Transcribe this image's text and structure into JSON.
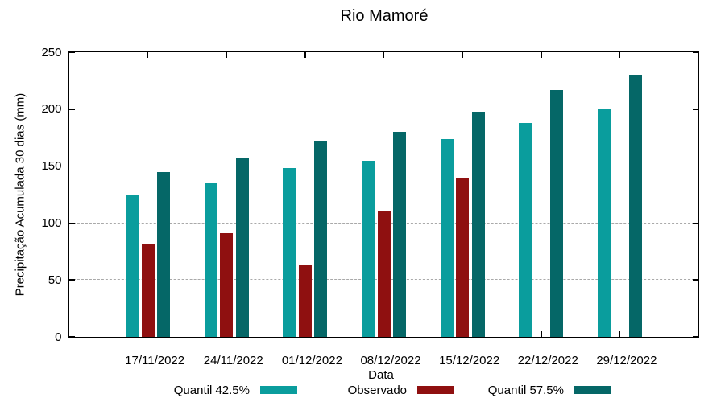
{
  "chart_data": {
    "type": "bar",
    "title": "Rio Mamoré",
    "xlabel": "Data",
    "ylabel": "Precipitação Acumulada 30 dias (mm)",
    "ylim": [
      0,
      250
    ],
    "yticks": [
      0,
      50,
      100,
      150,
      200,
      250
    ],
    "grid": true,
    "grid_style": "dashed",
    "legend_position": "bottom-center",
    "background": "#FFFFFF",
    "axis_color": "#000000",
    "grid_color": "#A9A9A9",
    "categories": [
      "17/11/2022",
      "24/11/2022",
      "01/12/2022",
      "08/12/2022",
      "15/12/2022",
      "22/12/2022",
      "29/12/2022"
    ],
    "series": [
      {
        "name": "Quantil 42.5%",
        "color": "#0A9D9D",
        "values": [
          125,
          135,
          148,
          155,
          174,
          188,
          200
        ]
      },
      {
        "name": "Observado",
        "color": "#8F1010",
        "values": [
          82,
          91,
          63,
          110,
          140,
          null,
          null
        ]
      },
      {
        "name": "Quantil 57.5%",
        "color": "#056767",
        "values": [
          145,
          157,
          172,
          180,
          198,
          217,
          230
        ]
      }
    ]
  }
}
